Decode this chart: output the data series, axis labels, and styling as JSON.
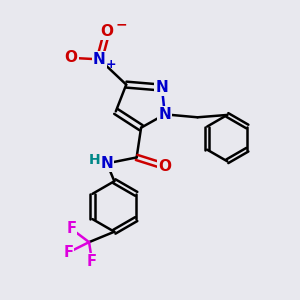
{
  "background_color": "#e8e8ee",
  "bond_color": "#000000",
  "bond_width": 1.8,
  "atom_colors": {
    "N": "#0000cc",
    "O": "#cc0000",
    "F": "#dd00dd",
    "H": "#008888",
    "C": "#000000"
  },
  "font_size": 11,
  "fig_width": 3.0,
  "fig_height": 3.0
}
